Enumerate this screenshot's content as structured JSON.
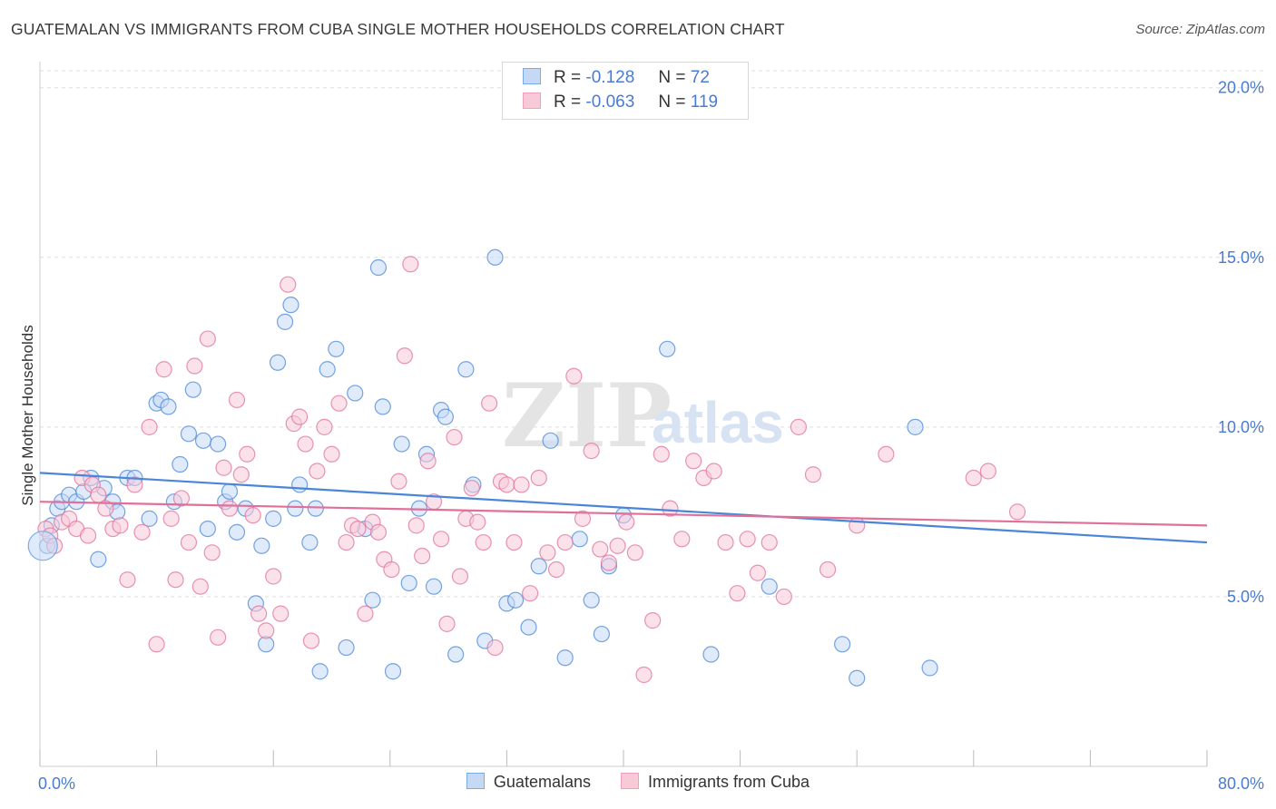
{
  "title": "GUATEMALAN VS IMMIGRANTS FROM CUBA SINGLE MOTHER HOUSEHOLDS CORRELATION CHART",
  "source": "Source: ZipAtlas.com",
  "watermark": {
    "zip": "ZIP",
    "atlas": "atlas"
  },
  "stats": [
    {
      "r_label": "R =",
      "r_value": "-0.128",
      "n_label": "N =",
      "n_value": "72",
      "color": "#7aaae8",
      "fill": "#c5d9f5"
    },
    {
      "r_label": "R =",
      "r_value": "-0.063",
      "n_label": "N =",
      "n_value": "119",
      "color": "#f0a0bc",
      "fill": "#f8cad8"
    }
  ],
  "legend": [
    {
      "label": "Guatemalans",
      "color": "#7aaae8",
      "fill": "#c5d9f5"
    },
    {
      "label": "Immigrants from Cuba",
      "color": "#f0a0bc",
      "fill": "#f8cad8"
    }
  ],
  "chart_data": {
    "type": "scatter",
    "title": "GUATEMALAN VS IMMIGRANTS FROM CUBA SINGLE MOTHER HOUSEHOLDS CORRELATION CHART",
    "xlabel": "",
    "ylabel": "Single Mother Households",
    "xlim": [
      0,
      80
    ],
    "ylim": [
      0,
      20.5
    ],
    "x_tick_labels": [
      {
        "value": 0,
        "label": "0.0%"
      },
      {
        "value": 80,
        "label": "80.0%"
      }
    ],
    "y_tick_labels": [
      {
        "value": 5,
        "label": "5.0%"
      },
      {
        "value": 10,
        "label": "10.0%"
      },
      {
        "value": 15,
        "label": "15.0%"
      },
      {
        "value": 20,
        "label": "20.0%"
      }
    ],
    "grid": true,
    "legend_position": "bottom",
    "series": [
      {
        "name": "Guatemalans",
        "color": "#4a86d8",
        "fill": "#c5d9f5",
        "trend": {
          "x": [
            0,
            80
          ],
          "y": [
            8.65,
            6.6
          ]
        },
        "points": [
          [
            0.5,
            6.5
          ],
          [
            0.8,
            7.1
          ],
          [
            1.2,
            7.6
          ],
          [
            1.5,
            7.8
          ],
          [
            2.0,
            8.0
          ],
          [
            2.5,
            7.8
          ],
          [
            3.0,
            8.1
          ],
          [
            3.5,
            8.5
          ],
          [
            4.0,
            6.1
          ],
          [
            4.4,
            8.2
          ],
          [
            5.0,
            7.8
          ],
          [
            5.3,
            7.5
          ],
          [
            6.0,
            8.5
          ],
          [
            6.5,
            8.5
          ],
          [
            7.5,
            7.3
          ],
          [
            8.0,
            10.7
          ],
          [
            8.3,
            10.8
          ],
          [
            8.8,
            10.6
          ],
          [
            9.2,
            7.8
          ],
          [
            9.6,
            8.9
          ],
          [
            10.2,
            9.8
          ],
          [
            10.5,
            11.1
          ],
          [
            11.2,
            9.6
          ],
          [
            11.5,
            7.0
          ],
          [
            12.2,
            9.5
          ],
          [
            12.7,
            7.8
          ],
          [
            13.0,
            8.1
          ],
          [
            13.5,
            6.9
          ],
          [
            14.1,
            7.6
          ],
          [
            14.8,
            4.8
          ],
          [
            15.2,
            6.5
          ],
          [
            15.5,
            3.6
          ],
          [
            16.0,
            7.3
          ],
          [
            16.3,
            11.9
          ],
          [
            16.8,
            13.1
          ],
          [
            17.2,
            13.6
          ],
          [
            17.5,
            7.6
          ],
          [
            17.8,
            8.3
          ],
          [
            18.5,
            6.6
          ],
          [
            18.9,
            7.6
          ],
          [
            19.2,
            2.8
          ],
          [
            19.7,
            11.7
          ],
          [
            20.3,
            12.3
          ],
          [
            21.0,
            3.5
          ],
          [
            21.6,
            11.0
          ],
          [
            22.3,
            7.0
          ],
          [
            22.8,
            4.9
          ],
          [
            23.2,
            14.7
          ],
          [
            23.5,
            10.6
          ],
          [
            24.2,
            2.8
          ],
          [
            24.8,
            9.5
          ],
          [
            25.3,
            5.4
          ],
          [
            26.0,
            7.6
          ],
          [
            26.5,
            9.2
          ],
          [
            27.0,
            5.3
          ],
          [
            27.5,
            10.5
          ],
          [
            27.8,
            10.3
          ],
          [
            28.5,
            3.3
          ],
          [
            29.2,
            11.7
          ],
          [
            29.7,
            8.3
          ],
          [
            30.5,
            3.7
          ],
          [
            31.2,
            15.0
          ],
          [
            32.0,
            4.8
          ],
          [
            32.6,
            4.9
          ],
          [
            33.5,
            4.1
          ],
          [
            34.2,
            5.9
          ],
          [
            35.0,
            9.6
          ],
          [
            36.0,
            3.2
          ],
          [
            37.0,
            6.7
          ],
          [
            37.8,
            4.9
          ],
          [
            38.5,
            3.9
          ],
          [
            39.0,
            5.9
          ],
          [
            40.0,
            7.4
          ],
          [
            43.0,
            12.3
          ],
          [
            46.0,
            3.3
          ],
          [
            50.0,
            5.3
          ],
          [
            55.0,
            3.6
          ],
          [
            56.0,
            2.6
          ],
          [
            60.0,
            10.0
          ],
          [
            61.0,
            2.9
          ]
        ]
      },
      {
        "name": "Immigrants from Cuba",
        "color": "#e0709a",
        "fill": "#f8cad8",
        "trend": {
          "x": [
            0,
            80
          ],
          "y": [
            7.8,
            7.1
          ]
        },
        "points": [
          [
            0.4,
            7.0
          ],
          [
            0.7,
            6.8
          ],
          [
            1.0,
            6.5
          ],
          [
            1.5,
            7.2
          ],
          [
            2.0,
            7.3
          ],
          [
            2.5,
            7.0
          ],
          [
            2.9,
            8.5
          ],
          [
            3.3,
            6.8
          ],
          [
            3.6,
            8.3
          ],
          [
            4.0,
            8.0
          ],
          [
            4.5,
            7.6
          ],
          [
            5.0,
            7.0
          ],
          [
            5.5,
            7.1
          ],
          [
            6.0,
            5.5
          ],
          [
            6.5,
            8.3
          ],
          [
            7.0,
            6.9
          ],
          [
            7.5,
            10.0
          ],
          [
            8.0,
            3.6
          ],
          [
            8.5,
            11.7
          ],
          [
            9.0,
            7.3
          ],
          [
            9.3,
            5.5
          ],
          [
            9.7,
            7.9
          ],
          [
            10.2,
            6.6
          ],
          [
            10.6,
            11.8
          ],
          [
            11.0,
            5.3
          ],
          [
            11.5,
            12.6
          ],
          [
            11.8,
            6.3
          ],
          [
            12.2,
            3.8
          ],
          [
            12.6,
            8.8
          ],
          [
            13.0,
            7.6
          ],
          [
            13.5,
            10.8
          ],
          [
            13.8,
            8.6
          ],
          [
            14.2,
            9.2
          ],
          [
            14.6,
            7.4
          ],
          [
            15.0,
            4.5
          ],
          [
            15.5,
            4.0
          ],
          [
            16.0,
            5.6
          ],
          [
            16.5,
            4.5
          ],
          [
            17.0,
            14.2
          ],
          [
            17.4,
            10.1
          ],
          [
            17.8,
            10.3
          ],
          [
            18.2,
            9.5
          ],
          [
            18.6,
            3.7
          ],
          [
            19.0,
            8.7
          ],
          [
            19.5,
            10.0
          ],
          [
            20.0,
            9.2
          ],
          [
            20.5,
            10.7
          ],
          [
            21.0,
            6.6
          ],
          [
            21.4,
            7.1
          ],
          [
            21.8,
            7.0
          ],
          [
            22.3,
            4.5
          ],
          [
            22.8,
            7.2
          ],
          [
            23.2,
            6.9
          ],
          [
            23.6,
            6.1
          ],
          [
            24.1,
            5.8
          ],
          [
            24.6,
            8.4
          ],
          [
            25.0,
            12.1
          ],
          [
            25.4,
            14.8
          ],
          [
            25.8,
            7.1
          ],
          [
            26.2,
            6.2
          ],
          [
            26.6,
            9.0
          ],
          [
            27.0,
            7.8
          ],
          [
            27.5,
            6.7
          ],
          [
            27.9,
            4.2
          ],
          [
            28.4,
            9.7
          ],
          [
            28.8,
            5.6
          ],
          [
            29.2,
            7.3
          ],
          [
            29.6,
            8.2
          ],
          [
            30.0,
            7.2
          ],
          [
            30.4,
            6.6
          ],
          [
            30.8,
            10.7
          ],
          [
            31.2,
            3.5
          ],
          [
            31.6,
            8.4
          ],
          [
            32.0,
            8.3
          ],
          [
            32.5,
            6.6
          ],
          [
            33.0,
            8.3
          ],
          [
            33.6,
            5.1
          ],
          [
            34.2,
            8.5
          ],
          [
            34.8,
            6.3
          ],
          [
            35.4,
            5.8
          ],
          [
            36.0,
            6.6
          ],
          [
            36.6,
            11.5
          ],
          [
            37.2,
            7.3
          ],
          [
            37.8,
            9.3
          ],
          [
            38.4,
            6.4
          ],
          [
            39.0,
            6.0
          ],
          [
            39.6,
            6.5
          ],
          [
            40.2,
            7.2
          ],
          [
            40.8,
            6.3
          ],
          [
            41.4,
            2.7
          ],
          [
            42.0,
            4.3
          ],
          [
            42.6,
            9.2
          ],
          [
            43.2,
            7.6
          ],
          [
            44.0,
            6.7
          ],
          [
            44.8,
            9.0
          ],
          [
            45.5,
            8.5
          ],
          [
            46.2,
            8.7
          ],
          [
            47.0,
            6.6
          ],
          [
            47.8,
            5.1
          ],
          [
            48.5,
            6.7
          ],
          [
            49.2,
            5.7
          ],
          [
            50.0,
            6.6
          ],
          [
            51.0,
            5.0
          ],
          [
            52.0,
            10.0
          ],
          [
            53.0,
            8.6
          ],
          [
            54.0,
            5.8
          ],
          [
            56.0,
            7.1
          ],
          [
            58.0,
            9.2
          ],
          [
            64.0,
            8.5
          ],
          [
            65.0,
            8.7
          ],
          [
            67.0,
            7.5
          ]
        ]
      }
    ]
  }
}
